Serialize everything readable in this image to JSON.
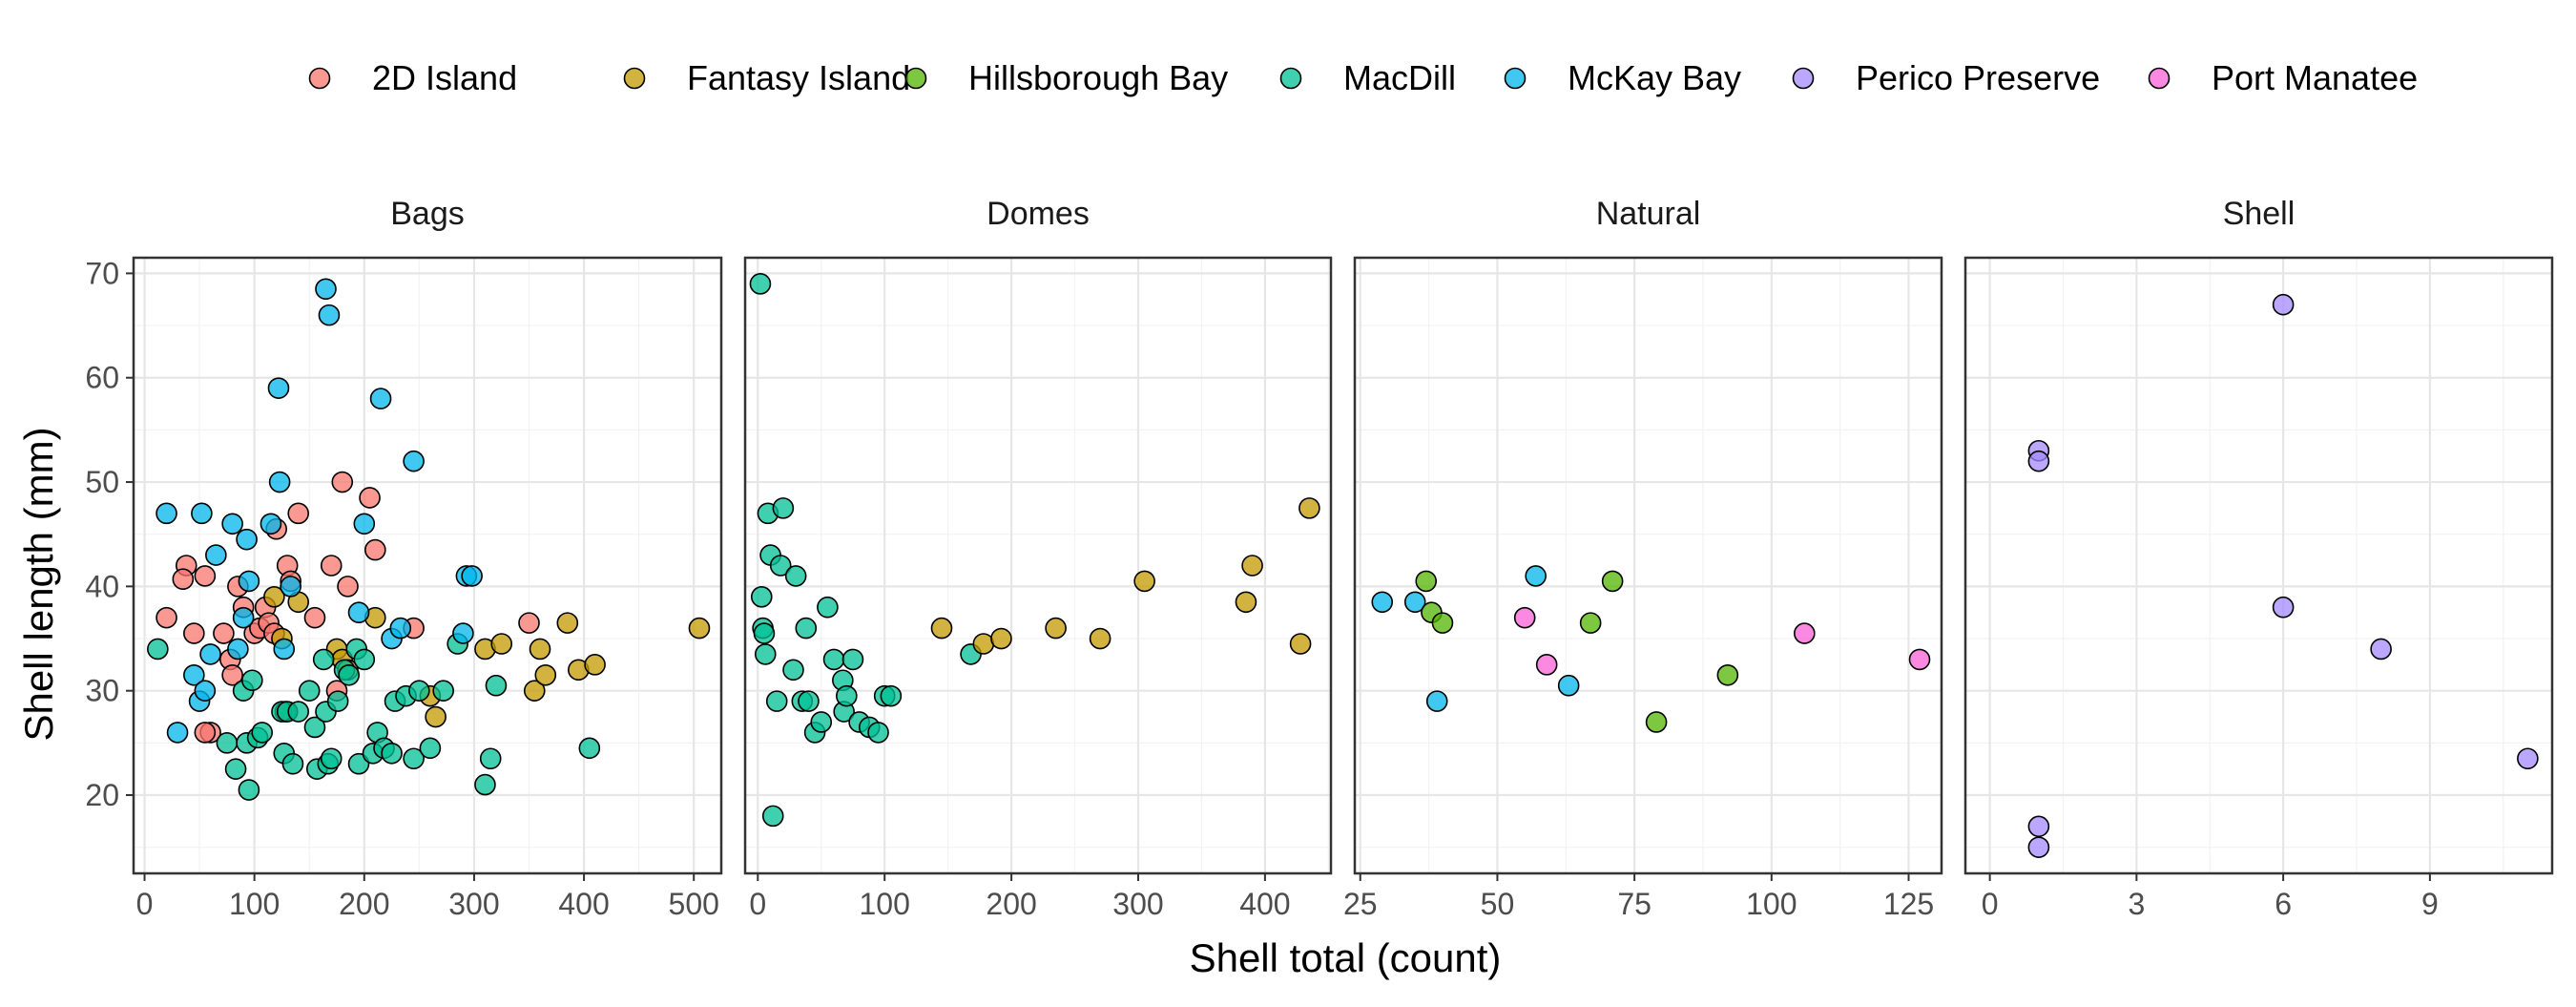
{
  "chart_data": {
    "type": "scatter",
    "xlabel": "Shell total (count)",
    "ylabel": "Shell length (mm)",
    "legend_position": "top",
    "grid": true,
    "ylim": [
      12.5,
      71.5
    ],
    "y_ticks": [
      20,
      30,
      40,
      50,
      60,
      70
    ],
    "legend": [
      {
        "name": "2D Island",
        "color": "#F8766D"
      },
      {
        "name": "Fantasy Island",
        "color": "#C49A00"
      },
      {
        "name": "Hillsborough Bay",
        "color": "#53B400"
      },
      {
        "name": "MacDill",
        "color": "#00C094"
      },
      {
        "name": "McKay Bay",
        "color": "#00B6EB"
      },
      {
        "name": "Perico Preserve",
        "color": "#A58AFF"
      },
      {
        "name": "Port Manatee",
        "color": "#FB61D7"
      }
    ],
    "panels": [
      {
        "title": "Bags",
        "xlim": [
          -10,
          525
        ],
        "x_ticks": [
          0,
          100,
          200,
          300,
          400,
          500
        ],
        "series": [
          {
            "name": "2D Island",
            "points": [
              [
                20,
                37
              ],
              [
                38,
                42
              ],
              [
                35,
                40.7
              ],
              [
                45,
                35.5
              ],
              [
                55,
                41
              ],
              [
                60,
                26
              ],
              [
                72,
                35.5
              ],
              [
                78,
                33
              ],
              [
                80,
                31.5
              ],
              [
                85,
                40
              ],
              [
                90,
                38
              ],
              [
                100,
                35.5
              ],
              [
                105,
                36
              ],
              [
                110,
                38
              ],
              [
                113,
                36.5
              ],
              [
                118,
                35.5
              ],
              [
                120,
                45.5
              ],
              [
                130,
                42
              ],
              [
                133,
                40.5
              ],
              [
                140,
                47
              ],
              [
                155,
                37
              ],
              [
                170,
                42
              ],
              [
                180,
                50
              ],
              [
                185,
                40
              ],
              [
                205,
                48.5
              ],
              [
                210,
                43.5
              ],
              [
                245,
                36
              ],
              [
                350,
                36.5
              ],
              [
                55,
                26
              ],
              [
                175,
                30
              ]
            ]
          },
          {
            "name": "Fantasy Island",
            "points": [
              [
                118,
                39
              ],
              [
                125,
                35
              ],
              [
                128,
                28
              ],
              [
                140,
                38.5
              ],
              [
                175,
                34
              ],
              [
                180,
                33
              ],
              [
                185,
                32
              ],
              [
                210,
                37
              ],
              [
                260,
                29.5
              ],
              [
                265,
                27.5
              ],
              [
                310,
                34
              ],
              [
                325,
                34.5
              ],
              [
                355,
                30
              ],
              [
                360,
                34
              ],
              [
                365,
                31.5
              ],
              [
                385,
                36.5
              ],
              [
                395,
                32
              ],
              [
                410,
                32.5
              ],
              [
                505,
                36
              ]
            ]
          },
          {
            "name": "MacDill",
            "points": [
              [
                12,
                34
              ],
              [
                75,
                25
              ],
              [
                83,
                22.5
              ],
              [
                90,
                30
              ],
              [
                93,
                25
              ],
              [
                95,
                20.5
              ],
              [
                98,
                31
              ],
              [
                103,
                25.5
              ],
              [
                107,
                26
              ],
              [
                125,
                28
              ],
              [
                127,
                24
              ],
              [
                130,
                28
              ],
              [
                135,
                23
              ],
              [
                140,
                28
              ],
              [
                150,
                30
              ],
              [
                155,
                26.5
              ],
              [
                157,
                22.5
              ],
              [
                163,
                33
              ],
              [
                165,
                28
              ],
              [
                167,
                23
              ],
              [
                170,
                23.5
              ],
              [
                176,
                29
              ],
              [
                182,
                32
              ],
              [
                186,
                31.5
              ],
              [
                193,
                34
              ],
              [
                195,
                23
              ],
              [
                200,
                33
              ],
              [
                208,
                24
              ],
              [
                212,
                26
              ],
              [
                218,
                24.5
              ],
              [
                225,
                24
              ],
              [
                228,
                29
              ],
              [
                238,
                29.5
              ],
              [
                245,
                23.5
              ],
              [
                250,
                30
              ],
              [
                260,
                24.5
              ],
              [
                272,
                30
              ],
              [
                285,
                34.5
              ],
              [
                310,
                21
              ],
              [
                315,
                23.5
              ],
              [
                320,
                30.5
              ],
              [
                405,
                24.5
              ]
            ]
          },
          {
            "name": "McKay Bay",
            "points": [
              [
                20,
                47
              ],
              [
                30,
                26
              ],
              [
                45,
                31.5
              ],
              [
                50,
                29
              ],
              [
                52,
                47
              ],
              [
                55,
                30
              ],
              [
                60,
                33.5
              ],
              [
                65,
                43
              ],
              [
                80,
                46
              ],
              [
                85,
                34
              ],
              [
                90,
                37
              ],
              [
                93,
                44.5
              ],
              [
                95,
                40.5
              ],
              [
                115,
                46
              ],
              [
                122,
                59
              ],
              [
                123,
                50
              ],
              [
                127,
                34
              ],
              [
                133,
                40
              ],
              [
                165,
                68.5
              ],
              [
                168,
                66
              ],
              [
                195,
                37.5
              ],
              [
                200,
                46
              ],
              [
                215,
                58
              ],
              [
                225,
                35
              ],
              [
                233,
                36
              ],
              [
                245,
                52
              ],
              [
                290,
                35.5
              ],
              [
                293,
                41
              ],
              [
                298,
                41
              ]
            ]
          }
        ]
      },
      {
        "title": "Domes",
        "xlim": [
          -10,
          452
        ],
        "x_ticks": [
          0,
          100,
          200,
          300,
          400
        ],
        "series": [
          {
            "name": "MacDill",
            "points": [
              [
                2,
                69
              ],
              [
                3,
                39
              ],
              [
                4,
                36
              ],
              [
                5,
                35.5
              ],
              [
                6,
                33.5
              ],
              [
                8,
                47
              ],
              [
                10,
                43
              ],
              [
                12,
                18
              ],
              [
                15,
                29
              ],
              [
                18,
                42
              ],
              [
                20,
                47.5
              ],
              [
                28,
                32
              ],
              [
                30,
                41
              ],
              [
                35,
                29
              ],
              [
                38,
                36
              ],
              [
                40,
                29
              ],
              [
                45,
                26
              ],
              [
                50,
                27
              ],
              [
                55,
                38
              ],
              [
                60,
                33
              ],
              [
                67,
                31
              ],
              [
                68,
                28
              ],
              [
                70,
                29.5
              ],
              [
                75,
                33
              ],
              [
                80,
                27
              ],
              [
                88,
                26.5
              ],
              [
                95,
                26
              ],
              [
                100,
                29.5
              ],
              [
                105,
                29.5
              ],
              [
                168,
                33.5
              ]
            ]
          },
          {
            "name": "Fantasy Island",
            "points": [
              [
                145,
                36
              ],
              [
                178,
                34.5
              ],
              [
                192,
                35
              ],
              [
                235,
                36
              ],
              [
                270,
                35
              ],
              [
                305,
                40.5
              ],
              [
                385,
                38.5
              ],
              [
                390,
                42
              ],
              [
                428,
                34.5
              ],
              [
                435,
                47.5
              ]
            ]
          }
        ]
      },
      {
        "title": "Natural",
        "xlim": [
          24,
          131
        ],
        "x_ticks": [
          25,
          50,
          75,
          100,
          125
        ],
        "series": [
          {
            "name": "McKay Bay",
            "points": [
              [
                29,
                38.5
              ],
              [
                35,
                38.5
              ],
              [
                39,
                29
              ],
              [
                57,
                41
              ],
              [
                63,
                30.5
              ]
            ]
          },
          {
            "name": "Hillsborough Bay",
            "points": [
              [
                37,
                40.5
              ],
              [
                38,
                37.5
              ],
              [
                40,
                36.5
              ],
              [
                67,
                36.5
              ],
              [
                71,
                40.5
              ],
              [
                79,
                27
              ],
              [
                92,
                31.5
              ]
            ]
          },
          {
            "name": "Port Manatee",
            "points": [
              [
                55,
                37
              ],
              [
                59,
                32.5
              ],
              [
                106,
                35.5
              ],
              [
                127,
                33
              ]
            ]
          }
        ]
      },
      {
        "title": "Shell",
        "xlim": [
          -0.5,
          11.5
        ],
        "x_ticks": [
          0,
          3,
          6,
          9
        ],
        "series": [
          {
            "name": "Perico Preserve",
            "points": [
              [
                1,
                53
              ],
              [
                1,
                52
              ],
              [
                1,
                17
              ],
              [
                1,
                15
              ],
              [
                6,
                67
              ],
              [
                6,
                38
              ],
              [
                8,
                34
              ],
              [
                11,
                23.5
              ]
            ]
          }
        ]
      }
    ]
  }
}
